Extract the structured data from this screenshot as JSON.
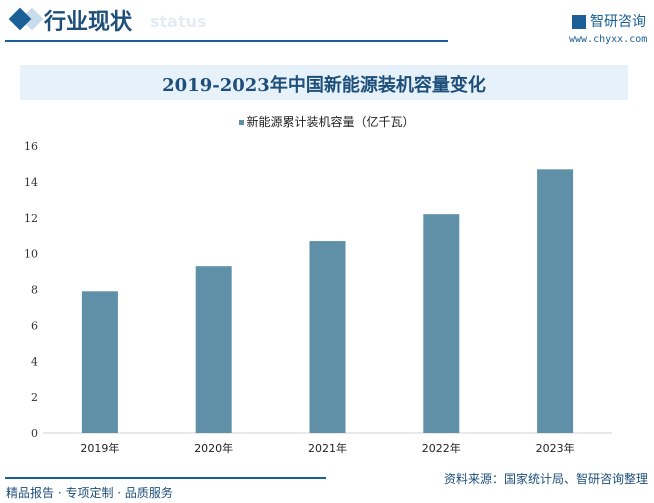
{
  "header": {
    "section_title": "行业现状",
    "section_ghost": "status",
    "brand": "智研咨询",
    "url": "www.chyxx.com"
  },
  "footer": {
    "left": "精品报告 · 专项定制 · 品质服务",
    "source": "资料来源：国家统计局、智研咨询整理"
  },
  "colors": {
    "bar": "#5f90a8",
    "accent": "#1b5f96"
  },
  "chart_data": {
    "type": "bar",
    "title": "2019-2023年中国新能源装机容量变化",
    "categories": [
      "2019年",
      "2020年",
      "2021年",
      "2022年",
      "2023年"
    ],
    "series": [
      {
        "name": "新能源累计装机容量（亿千瓦）",
        "values": [
          7.9,
          9.3,
          10.7,
          12.2,
          14.7
        ]
      }
    ],
    "ylim": [
      0,
      16
    ],
    "yticks": [
      "0",
      "2",
      "4",
      "6",
      "8",
      "10",
      "12",
      "14",
      "16"
    ],
    "legend": "top",
    "grid": false
  }
}
